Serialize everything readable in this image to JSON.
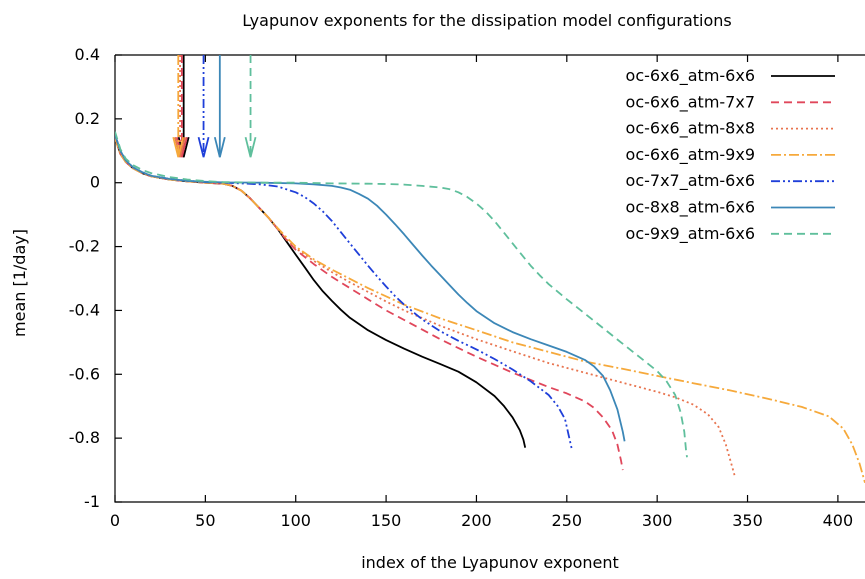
{
  "chart_data": {
    "type": "line",
    "title": "Lyapunov exponents for the dissipation model configurations",
    "xlabel": "index of the Lyapunov exponent",
    "ylabel": "mean [1/day]",
    "xlim": [
      0,
      415
    ],
    "ylim": [
      -1,
      0.4
    ],
    "x_ticks": [
      0,
      50,
      100,
      150,
      200,
      250,
      300,
      350,
      400
    ],
    "y_ticks": [
      -1,
      -0.8,
      -0.6,
      -0.4,
      -0.2,
      0,
      0.2,
      0.4
    ],
    "x_tick_labels": [
      "0",
      "50",
      "100",
      "150",
      "200",
      "250",
      "300",
      "350",
      "400"
    ],
    "y_tick_labels": [
      "-1",
      "-0.8",
      "-0.6",
      "-0.4",
      "-0.2",
      "0",
      "0.2",
      "0.4"
    ],
    "legend_position": "top-right",
    "grid": false,
    "series": [
      {
        "name": "oc-6x6_atm-6x6",
        "color": "#000000",
        "dash": "solid",
        "arrow_x": 38,
        "points": [
          [
            0,
            0.14
          ],
          [
            3,
            0.09
          ],
          [
            6,
            0.065
          ],
          [
            10,
            0.045
          ],
          [
            15,
            0.03
          ],
          [
            20,
            0.02
          ],
          [
            30,
            0.01
          ],
          [
            40,
            0.004
          ],
          [
            50,
            0.0
          ],
          [
            60,
            -0.003
          ],
          [
            65,
            -0.01
          ],
          [
            70,
            -0.025
          ],
          [
            75,
            -0.05
          ],
          [
            80,
            -0.08
          ],
          [
            85,
            -0.11
          ],
          [
            90,
            -0.145
          ],
          [
            95,
            -0.185
          ],
          [
            100,
            -0.225
          ],
          [
            105,
            -0.265
          ],
          [
            110,
            -0.305
          ],
          [
            115,
            -0.34
          ],
          [
            120,
            -0.37
          ],
          [
            125,
            -0.398
          ],
          [
            130,
            -0.423
          ],
          [
            140,
            -0.462
          ],
          [
            150,
            -0.493
          ],
          [
            160,
            -0.52
          ],
          [
            170,
            -0.545
          ],
          [
            180,
            -0.568
          ],
          [
            190,
            -0.592
          ],
          [
            200,
            -0.625
          ],
          [
            210,
            -0.668
          ],
          [
            215,
            -0.698
          ],
          [
            220,
            -0.735
          ],
          [
            224,
            -0.775
          ],
          [
            226,
            -0.805
          ],
          [
            227,
            -0.83
          ]
        ]
      },
      {
        "name": "oc-6x6_atm-7x7",
        "color": "#e0475b",
        "dash": "8,5",
        "arrow_x": 37,
        "points": [
          [
            0,
            0.14
          ],
          [
            3,
            0.09
          ],
          [
            6,
            0.065
          ],
          [
            10,
            0.045
          ],
          [
            15,
            0.03
          ],
          [
            20,
            0.02
          ],
          [
            30,
            0.01
          ],
          [
            40,
            0.004
          ],
          [
            50,
            0.0
          ],
          [
            60,
            -0.003
          ],
          [
            65,
            -0.01
          ],
          [
            70,
            -0.025
          ],
          [
            75,
            -0.05
          ],
          [
            80,
            -0.08
          ],
          [
            85,
            -0.11
          ],
          [
            90,
            -0.145
          ],
          [
            95,
            -0.18
          ],
          [
            100,
            -0.21
          ],
          [
            110,
            -0.255
          ],
          [
            120,
            -0.295
          ],
          [
            130,
            -0.33
          ],
          [
            140,
            -0.365
          ],
          [
            150,
            -0.4
          ],
          [
            160,
            -0.43
          ],
          [
            170,
            -0.46
          ],
          [
            180,
            -0.49
          ],
          [
            190,
            -0.518
          ],
          [
            200,
            -0.545
          ],
          [
            210,
            -0.57
          ],
          [
            220,
            -0.595
          ],
          [
            230,
            -0.618
          ],
          [
            240,
            -0.64
          ],
          [
            250,
            -0.66
          ],
          [
            260,
            -0.685
          ],
          [
            265,
            -0.705
          ],
          [
            270,
            -0.735
          ],
          [
            275,
            -0.775
          ],
          [
            278,
            -0.82
          ],
          [
            280,
            -0.87
          ],
          [
            281,
            -0.9
          ]
        ]
      },
      {
        "name": "oc-6x6_atm-8x8",
        "color": "#e8744f",
        "dash": "2,3",
        "arrow_x": 36,
        "points": [
          [
            0,
            0.14
          ],
          [
            3,
            0.09
          ],
          [
            6,
            0.065
          ],
          [
            10,
            0.045
          ],
          [
            15,
            0.03
          ],
          [
            20,
            0.02
          ],
          [
            30,
            0.01
          ],
          [
            40,
            0.004
          ],
          [
            50,
            0.0
          ],
          [
            60,
            -0.003
          ],
          [
            65,
            -0.01
          ],
          [
            70,
            -0.025
          ],
          [
            75,
            -0.05
          ],
          [
            80,
            -0.08
          ],
          [
            85,
            -0.11
          ],
          [
            90,
            -0.145
          ],
          [
            95,
            -0.178
          ],
          [
            100,
            -0.205
          ],
          [
            110,
            -0.245
          ],
          [
            120,
            -0.28
          ],
          [
            130,
            -0.312
          ],
          [
            140,
            -0.342
          ],
          [
            150,
            -0.372
          ],
          [
            160,
            -0.4
          ],
          [
            180,
            -0.448
          ],
          [
            200,
            -0.49
          ],
          [
            220,
            -0.528
          ],
          [
            240,
            -0.565
          ],
          [
            260,
            -0.595
          ],
          [
            280,
            -0.625
          ],
          [
            300,
            -0.655
          ],
          [
            310,
            -0.672
          ],
          [
            320,
            -0.695
          ],
          [
            328,
            -0.725
          ],
          [
            334,
            -0.765
          ],
          [
            338,
            -0.82
          ],
          [
            341,
            -0.88
          ],
          [
            343,
            -0.92
          ]
        ]
      },
      {
        "name": "oc-6x6_atm-9x9",
        "color": "#f6a93b",
        "dash": "10,3,2,3",
        "arrow_x": 35,
        "points": [
          [
            0,
            0.14
          ],
          [
            3,
            0.09
          ],
          [
            6,
            0.065
          ],
          [
            10,
            0.045
          ],
          [
            15,
            0.03
          ],
          [
            20,
            0.02
          ],
          [
            30,
            0.01
          ],
          [
            40,
            0.004
          ],
          [
            50,
            0.0
          ],
          [
            60,
            -0.003
          ],
          [
            65,
            -0.01
          ],
          [
            70,
            -0.025
          ],
          [
            75,
            -0.05
          ],
          [
            80,
            -0.08
          ],
          [
            85,
            -0.11
          ],
          [
            90,
            -0.142
          ],
          [
            95,
            -0.172
          ],
          [
            100,
            -0.2
          ],
          [
            110,
            -0.24
          ],
          [
            120,
            -0.272
          ],
          [
            140,
            -0.33
          ],
          [
            160,
            -0.382
          ],
          [
            180,
            -0.425
          ],
          [
            200,
            -0.462
          ],
          [
            220,
            -0.5
          ],
          [
            240,
            -0.53
          ],
          [
            260,
            -0.56
          ],
          [
            280,
            -0.582
          ],
          [
            300,
            -0.605
          ],
          [
            320,
            -0.628
          ],
          [
            340,
            -0.65
          ],
          [
            360,
            -0.675
          ],
          [
            380,
            -0.702
          ],
          [
            395,
            -0.732
          ],
          [
            403,
            -0.77
          ],
          [
            408,
            -0.82
          ],
          [
            412,
            -0.88
          ],
          [
            415,
            -0.94
          ]
        ]
      },
      {
        "name": "oc-7x7_atm-6x6",
        "color": "#1f3fd9",
        "dash": "9,3,2,3,2,3",
        "arrow_x": 49,
        "points": [
          [
            0,
            0.15
          ],
          [
            3,
            0.1
          ],
          [
            6,
            0.07
          ],
          [
            10,
            0.048
          ],
          [
            15,
            0.033
          ],
          [
            20,
            0.022
          ],
          [
            30,
            0.012
          ],
          [
            40,
            0.006
          ],
          [
            50,
            0.002
          ],
          [
            60,
            0.0
          ],
          [
            70,
            -0.002
          ],
          [
            80,
            -0.005
          ],
          [
            90,
            -0.012
          ],
          [
            100,
            -0.03
          ],
          [
            105,
            -0.045
          ],
          [
            110,
            -0.065
          ],
          [
            115,
            -0.09
          ],
          [
            120,
            -0.12
          ],
          [
            125,
            -0.155
          ],
          [
            130,
            -0.19
          ],
          [
            135,
            -0.225
          ],
          [
            140,
            -0.26
          ],
          [
            145,
            -0.293
          ],
          [
            150,
            -0.325
          ],
          [
            155,
            -0.355
          ],
          [
            160,
            -0.382
          ],
          [
            170,
            -0.428
          ],
          [
            180,
            -0.465
          ],
          [
            190,
            -0.495
          ],
          [
            200,
            -0.522
          ],
          [
            210,
            -0.552
          ],
          [
            220,
            -0.585
          ],
          [
            230,
            -0.622
          ],
          [
            240,
            -0.665
          ],
          [
            245,
            -0.7
          ],
          [
            249,
            -0.74
          ],
          [
            251,
            -0.79
          ],
          [
            253,
            -0.84
          ]
        ]
      },
      {
        "name": "oc-8x8_atm-6x6",
        "color": "#3c87b7",
        "dash": "solid",
        "arrow_x": 58,
        "points": [
          [
            0,
            0.15
          ],
          [
            3,
            0.1
          ],
          [
            6,
            0.07
          ],
          [
            10,
            0.048
          ],
          [
            15,
            0.033
          ],
          [
            20,
            0.022
          ],
          [
            30,
            0.012
          ],
          [
            40,
            0.006
          ],
          [
            50,
            0.003
          ],
          [
            60,
            0.001
          ],
          [
            80,
            0.0
          ],
          [
            100,
            -0.002
          ],
          [
            110,
            -0.005
          ],
          [
            120,
            -0.01
          ],
          [
            125,
            -0.015
          ],
          [
            130,
            -0.022
          ],
          [
            135,
            -0.035
          ],
          [
            140,
            -0.05
          ],
          [
            145,
            -0.072
          ],
          [
            150,
            -0.1
          ],
          [
            155,
            -0.13
          ],
          [
            160,
            -0.162
          ],
          [
            165,
            -0.195
          ],
          [
            170,
            -0.228
          ],
          [
            175,
            -0.26
          ],
          [
            180,
            -0.29
          ],
          [
            185,
            -0.32
          ],
          [
            190,
            -0.35
          ],
          [
            195,
            -0.377
          ],
          [
            200,
            -0.402
          ],
          [
            210,
            -0.44
          ],
          [
            220,
            -0.468
          ],
          [
            230,
            -0.49
          ],
          [
            240,
            -0.51
          ],
          [
            250,
            -0.53
          ],
          [
            260,
            -0.555
          ],
          [
            265,
            -0.575
          ],
          [
            270,
            -0.605
          ],
          [
            274,
            -0.65
          ],
          [
            278,
            -0.71
          ],
          [
            281,
            -0.78
          ],
          [
            282,
            -0.81
          ]
        ]
      },
      {
        "name": "oc-9x9_atm-6x6",
        "color": "#5fbf9c",
        "dash": "8,5",
        "arrow_x": 75,
        "points": [
          [
            0,
            0.16
          ],
          [
            3,
            0.105
          ],
          [
            6,
            0.075
          ],
          [
            10,
            0.055
          ],
          [
            15,
            0.04
          ],
          [
            20,
            0.03
          ],
          [
            30,
            0.018
          ],
          [
            40,
            0.01
          ],
          [
            50,
            0.005
          ],
          [
            60,
            0.002
          ],
          [
            80,
            0.0
          ],
          [
            100,
            0.0
          ],
          [
            120,
            -0.002
          ],
          [
            140,
            -0.003
          ],
          [
            150,
            -0.004
          ],
          [
            160,
            -0.006
          ],
          [
            170,
            -0.01
          ],
          [
            180,
            -0.015
          ],
          [
            185,
            -0.02
          ],
          [
            190,
            -0.03
          ],
          [
            195,
            -0.045
          ],
          [
            200,
            -0.065
          ],
          [
            205,
            -0.09
          ],
          [
            210,
            -0.12
          ],
          [
            215,
            -0.155
          ],
          [
            220,
            -0.19
          ],
          [
            225,
            -0.225
          ],
          [
            230,
            -0.26
          ],
          [
            235,
            -0.29
          ],
          [
            240,
            -0.318
          ],
          [
            250,
            -0.365
          ],
          [
            260,
            -0.41
          ],
          [
            270,
            -0.455
          ],
          [
            280,
            -0.5
          ],
          [
            290,
            -0.545
          ],
          [
            300,
            -0.59
          ],
          [
            305,
            -0.62
          ],
          [
            310,
            -0.665
          ],
          [
            313,
            -0.72
          ],
          [
            315,
            -0.78
          ],
          [
            316,
            -0.84
          ],
          [
            316.5,
            -0.86
          ]
        ]
      }
    ]
  }
}
